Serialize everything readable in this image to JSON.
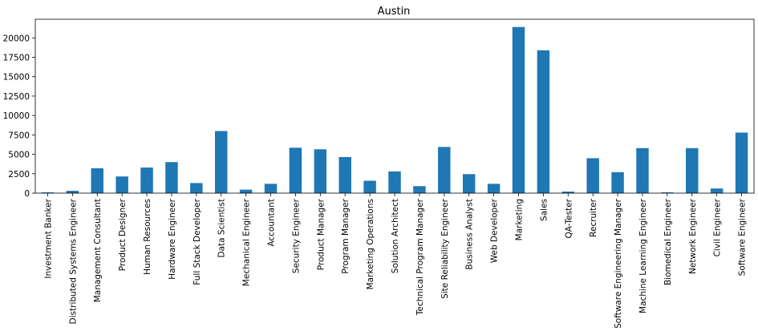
{
  "chart_data": {
    "type": "bar",
    "title": "Austin",
    "xlabel": "",
    "ylabel": "",
    "ylim": [
      0,
      22400
    ],
    "yticks": [
      0,
      2500,
      5000,
      7500,
      10000,
      12500,
      15000,
      17500,
      20000
    ],
    "grid": false,
    "bar_color": "#1f77b4",
    "categories": [
      "Investment Banker",
      "Distributed Systems Engineer",
      "Management Consultant",
      "Product Designer",
      "Human Resources",
      "Hardware Engineer",
      "Full Stack Developer",
      "Data Scientist",
      "Mechanical Engineer",
      "Accountant",
      "Security Engineer",
      "Product Manager",
      "Program Manager",
      "Marketing Operations",
      "Solution Architect",
      "Technical Program Manager",
      "Site Reliability Engineer",
      "Business Analyst",
      "Web Developer",
      "Marketing",
      "Sales",
      "QA-Tester",
      "Recruiter",
      "Software Engineering Manager",
      "Machine Learning Engineer",
      "Biomedical Engineer",
      "Network Engineer",
      "Civil Engineer",
      "Software Engineer"
    ],
    "values": [
      100,
      300,
      3200,
      2150,
      3300,
      4000,
      1300,
      8000,
      450,
      1200,
      5850,
      5650,
      4650,
      1600,
      2800,
      900,
      5950,
      2450,
      1200,
      21400,
      18400,
      200,
      4500,
      2700,
      5800,
      100,
      5800,
      600,
      7800
    ]
  }
}
